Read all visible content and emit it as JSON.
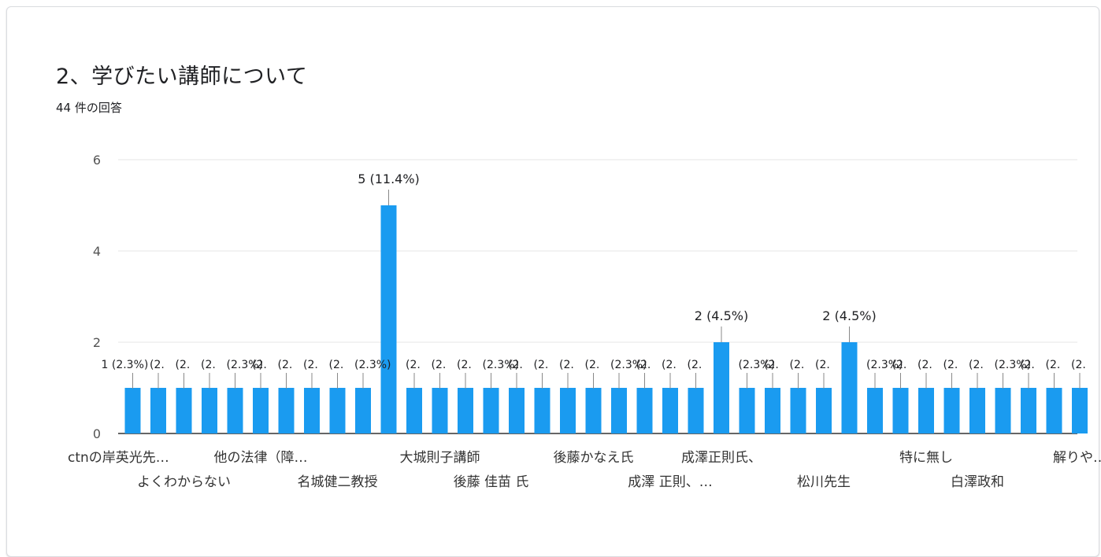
{
  "header": {
    "title": "2、学びたい講師について",
    "response_count": "44 件の回答"
  },
  "colors": {
    "bar": "#1a9bf0",
    "grid": "#e6e6e6",
    "axis": "#555555",
    "text": "#202124"
  },
  "chart_data": {
    "type": "bar",
    "title": "2、学びたい講師について",
    "ylim": [
      0,
      6
    ],
    "yticks": [
      0,
      2,
      4,
      6
    ],
    "grid": true,
    "categories": [
      "ctnの岸英光先…",
      "",
      "",
      "",
      "",
      "",
      "",
      "",
      "",
      "",
      "",
      "",
      "",
      "",
      "",
      "",
      "",
      "",
      "",
      "",
      "",
      "",
      "",
      "",
      "",
      "",
      "",
      "",
      "",
      "",
      "",
      "",
      "",
      "",
      "",
      "",
      "",
      ""
    ],
    "values": [
      1,
      1,
      1,
      1,
      1,
      1,
      1,
      1,
      1,
      1,
      5,
      1,
      1,
      1,
      1,
      1,
      1,
      1,
      1,
      1,
      1,
      1,
      1,
      2,
      1,
      1,
      1,
      1,
      2,
      1,
      1,
      1,
      1,
      1,
      1,
      1,
      1,
      1
    ],
    "visible_xlabels": [
      {
        "index": 0,
        "text": "ctnの岸英光先…",
        "row": 1
      },
      {
        "index": 2,
        "text": "よくわからない",
        "row": 2
      },
      {
        "index": 5,
        "text": "他の法律（障…",
        "row": 1
      },
      {
        "index": 8,
        "text": "名城健二教授",
        "row": 2
      },
      {
        "index": 12,
        "text": "大城則子講師",
        "row": 1
      },
      {
        "index": 14,
        "text": "後藤 佳苗 氏",
        "row": 2
      },
      {
        "index": 18,
        "text": "後藤かなえ氏",
        "row": 1
      },
      {
        "index": 21,
        "text": "成澤 正則、…",
        "row": 2
      },
      {
        "index": 23,
        "text": "成澤正則氏、",
        "row": 1
      },
      {
        "index": 27,
        "text": "松川先生",
        "row": 2
      },
      {
        "index": 31,
        "text": "特に無し",
        "row": 1
      },
      {
        "index": 33,
        "text": "白澤政和",
        "row": 2
      },
      {
        "index": 37,
        "text": "解りや…",
        "row": 1
      }
    ],
    "data_labels": [
      {
        "index": 0,
        "text": "1 (2.3%)"
      },
      {
        "index": 10,
        "text": "5 (11.4%)"
      },
      {
        "index": 23,
        "text": "2 (4.5%)"
      },
      {
        "index": 28,
        "text": "2 (4.5%)"
      }
    ],
    "crowded_label_fragments": [
      "(2.",
      "(2.3%)",
      "1 (2.3%)"
    ]
  }
}
